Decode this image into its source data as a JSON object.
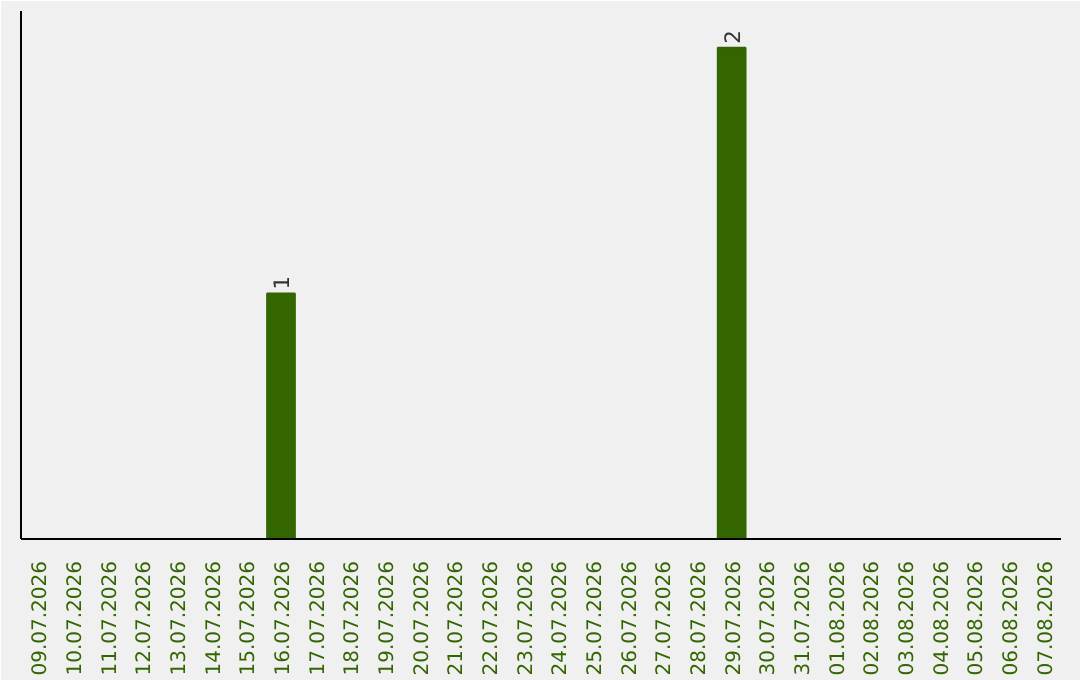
{
  "chart_data": {
    "type": "bar",
    "categories": [
      "09.07.2026",
      "10.07.2026",
      "11.07.2026",
      "12.07.2026",
      "13.07.2026",
      "14.07.2026",
      "15.07.2026",
      "16.07.2026",
      "17.07.2026",
      "18.07.2026",
      "19.07.2026",
      "20.07.2026",
      "21.07.2026",
      "22.07.2026",
      "23.07.2026",
      "24.07.2026",
      "25.07.2026",
      "26.07.2026",
      "27.07.2026",
      "28.07.2026",
      "29.07.2026",
      "30.07.2026",
      "31.07.2026",
      "01.08.2026",
      "02.08.2026",
      "03.08.2026",
      "04.08.2026",
      "05.08.2026",
      "06.08.2026",
      "07.08.2026"
    ],
    "values": [
      0,
      0,
      0,
      0,
      0,
      0,
      0,
      1,
      0,
      0,
      0,
      0,
      0,
      0,
      0,
      0,
      0,
      0,
      0,
      0,
      2,
      0,
      0,
      0,
      0,
      0,
      0,
      0,
      0,
      0
    ],
    "value_labels": [
      null,
      null,
      null,
      null,
      null,
      null,
      null,
      "1",
      null,
      null,
      null,
      null,
      null,
      null,
      null,
      null,
      null,
      null,
      null,
      null,
      "2",
      null,
      null,
      null,
      null,
      null,
      null,
      null,
      null,
      null
    ],
    "color": "#336600",
    "tick_labels": "x",
    "grid": false
  }
}
